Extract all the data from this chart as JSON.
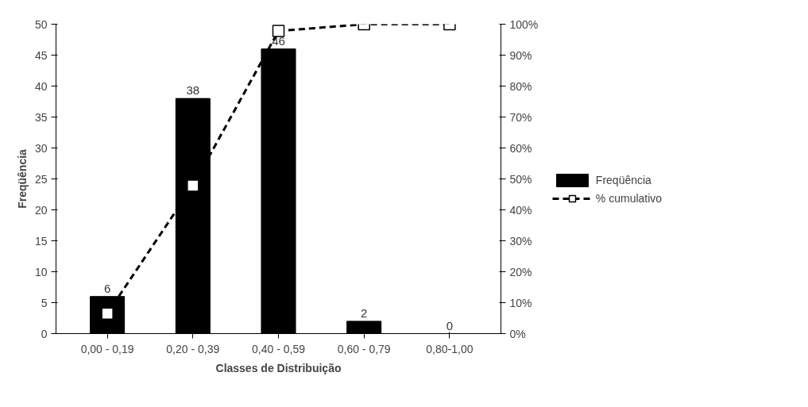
{
  "chart_data": {
    "type": "bar",
    "xlabel": "Classes de Distribuição",
    "ylabel": "Freqüência",
    "categories": [
      "0,00 - 0,19",
      "0,20 - 0,39",
      "0,40 - 0,59",
      "0,60 - 0,79",
      "0,80-1,00"
    ],
    "series": [
      {
        "name": "Freqüência",
        "color": "#000000",
        "values": [
          6,
          38,
          46,
          2,
          0
        ],
        "value_labels": [
          "6",
          "38",
          "46",
          "2",
          "0"
        ]
      },
      {
        "name": "% cumulativo",
        "type": "line",
        "axis": "y2",
        "color": "#000000",
        "values": [
          6.5,
          47.8,
          97.8,
          100,
          100
        ],
        "marker": "square",
        "line_style": "dashed"
      }
    ],
    "ylim": [
      0,
      50
    ],
    "yticks": [
      0,
      5,
      10,
      15,
      20,
      25,
      30,
      35,
      40,
      45,
      50
    ],
    "y2lim": [
      0,
      100
    ],
    "y2ticks": [
      {
        "value": 0,
        "label": "0%"
      },
      {
        "value": 10,
        "label": "10%"
      },
      {
        "value": 20,
        "label": "20%"
      },
      {
        "value": 30,
        "label": "30%"
      },
      {
        "value": 40,
        "label": "40%"
      },
      {
        "value": 50,
        "label": "50%"
      },
      {
        "value": 60,
        "label": "60%"
      },
      {
        "value": 70,
        "label": "70%"
      },
      {
        "value": 80,
        "label": "80%"
      },
      {
        "value": 90,
        "label": "90%"
      },
      {
        "value": 100,
        "label": "100%"
      }
    ],
    "grid": false,
    "legend": "right"
  }
}
